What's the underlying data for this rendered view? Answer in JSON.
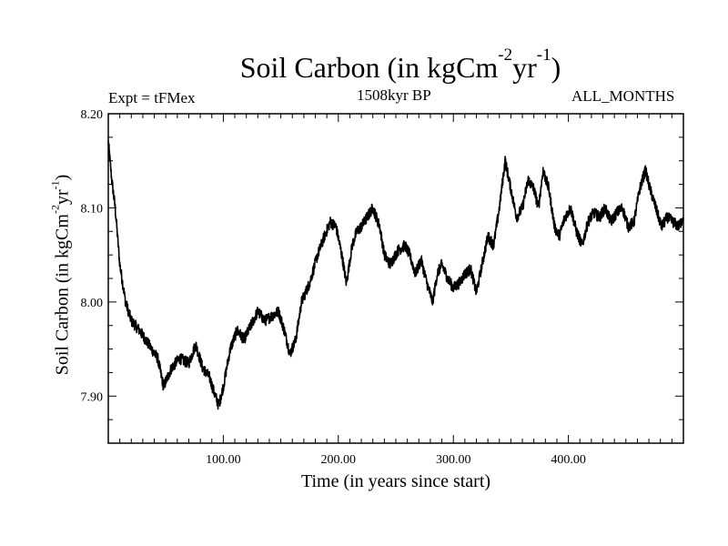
{
  "chart_data": {
    "type": "line",
    "title": {
      "main": "Soil Carbon (in kgCm",
      "exp1": "-2",
      "mid": "yr",
      "exp2": "-1",
      "end": ")"
    },
    "subtitle_left": "Expt = tFMex",
    "subtitle_center": "1508kyr BP",
    "subtitle_right": "ALL_MONTHS",
    "xlabel": "Time (in years since start)",
    "ylabel": {
      "main": "Soil Carbon (in kgCm",
      "exp1": "-2",
      "mid": "yr",
      "exp2": "-1",
      "end": ")"
    },
    "xlim": [
      0,
      500
    ],
    "ylim": [
      7.85,
      8.2
    ],
    "x_ticks": [
      100,
      200,
      300,
      400
    ],
    "x_tick_labels": [
      "100.00",
      "200.00",
      "300.00",
      "400.00"
    ],
    "y_ticks": [
      7.9,
      8.0,
      8.1,
      8.2
    ],
    "y_tick_labels": [
      "7.90",
      "8.00",
      "8.10",
      "8.20"
    ],
    "noise_amplitude": 0.006,
    "series": [
      {
        "name": "Soil Carbon",
        "color": "#000000",
        "x": [
          0,
          3,
          6,
          10,
          15,
          20,
          27,
          35,
          43,
          48,
          55,
          62,
          70,
          76,
          82,
          88,
          93,
          96,
          100,
          106,
          112,
          118,
          124,
          130,
          136,
          142,
          148,
          153,
          158,
          163,
          168,
          175,
          182,
          188,
          193,
          198,
          203,
          207,
          212,
          216,
          220,
          225,
          230,
          236,
          240,
          245,
          252,
          258,
          262,
          267,
          272,
          277,
          282,
          286,
          290,
          295,
          300,
          305,
          310,
          315,
          320,
          325,
          330,
          335,
          340,
          345,
          350,
          355,
          360,
          365,
          370,
          374,
          378,
          383,
          388,
          392,
          397,
          402,
          407,
          412,
          417,
          422,
          427,
          432,
          437,
          442,
          447,
          452,
          457,
          462,
          467,
          471,
          476,
          481,
          486,
          491,
          496,
          500
        ],
        "y": [
          8.17,
          8.13,
          8.1,
          8.04,
          8.0,
          7.98,
          7.97,
          7.955,
          7.94,
          7.91,
          7.93,
          7.94,
          7.935,
          7.955,
          7.93,
          7.92,
          7.9,
          7.89,
          7.91,
          7.95,
          7.97,
          7.96,
          7.975,
          7.99,
          7.98,
          7.985,
          7.99,
          7.97,
          7.945,
          7.96,
          8.0,
          8.02,
          8.05,
          8.07,
          8.085,
          8.08,
          8.05,
          8.02,
          8.06,
          8.075,
          8.08,
          8.09,
          8.1,
          8.08,
          8.05,
          8.04,
          8.055,
          8.06,
          8.05,
          8.03,
          8.045,
          8.02,
          8.0,
          8.03,
          8.04,
          8.025,
          8.015,
          8.02,
          8.03,
          8.035,
          8.01,
          8.04,
          8.07,
          8.06,
          8.1,
          8.15,
          8.12,
          8.09,
          8.1,
          8.13,
          8.12,
          8.1,
          8.14,
          8.12,
          8.08,
          8.07,
          8.09,
          8.1,
          8.075,
          8.06,
          8.085,
          8.095,
          8.09,
          8.1,
          8.085,
          8.095,
          8.1,
          8.08,
          8.085,
          8.12,
          8.14,
          8.12,
          8.1,
          8.08,
          8.09,
          8.085,
          8.08,
          8.09
        ]
      }
    ]
  }
}
